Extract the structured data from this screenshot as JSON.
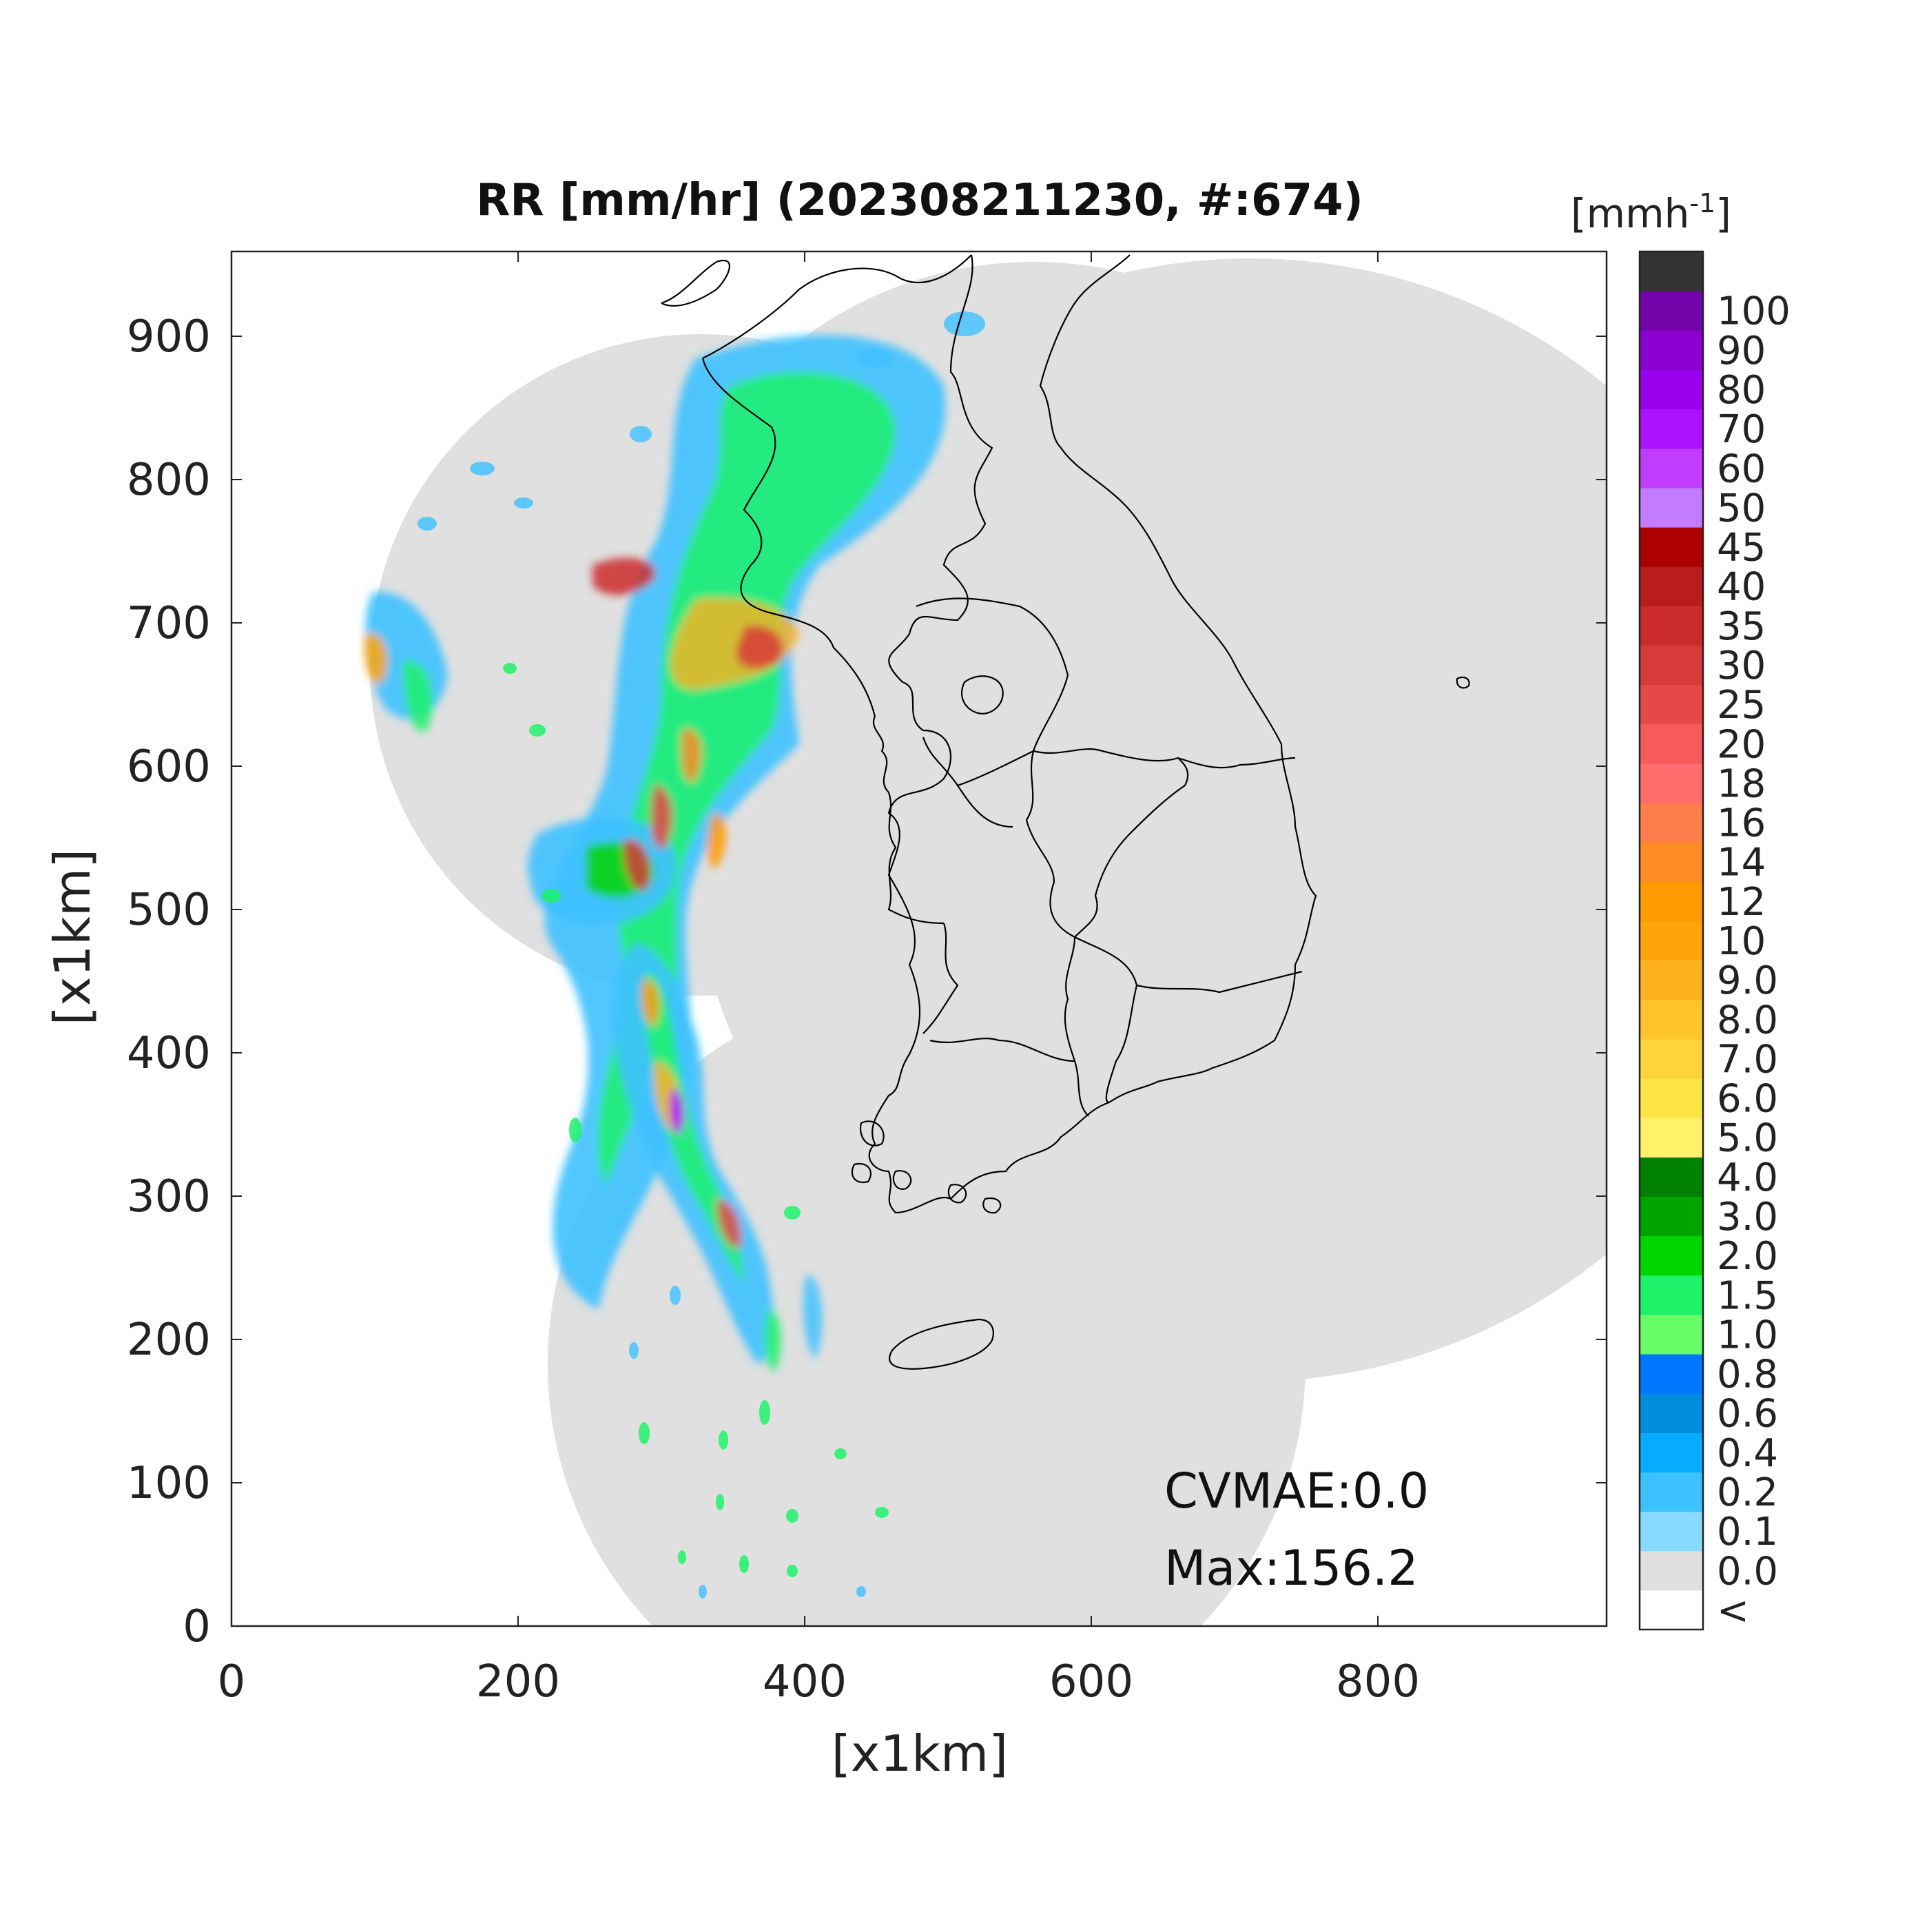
{
  "title": "RR [mm/hr] (202308211230, #:674)",
  "xlabel": "[x1km]",
  "ylabel": "[x1km]",
  "x_ticks": [
    "0",
    "200",
    "400",
    "600",
    "800"
  ],
  "y_ticks": [
    "0",
    "100",
    "200",
    "300",
    "400",
    "500",
    "600",
    "700",
    "800",
    "900"
  ],
  "colorbar": {
    "unit_label": "[mmh",
    "unit_superscript": "-1",
    "unit_close": "]",
    "labels": [
      "<",
      "0.0",
      "0.1",
      "0.2",
      "0.4",
      "0.6",
      "0.8",
      "1.0",
      "1.5",
      "2.0",
      "3.0",
      "4.0",
      "5.0",
      "6.0",
      "7.0",
      "8.0",
      "9.0",
      "10",
      "12",
      "14",
      "16",
      "18",
      "20",
      "25",
      "30",
      "35",
      "40",
      "45",
      "50",
      "60",
      "70",
      "80",
      "90",
      "100"
    ],
    "colors": [
      "#ffffff",
      "#e0e0e0",
      "#87d9ff",
      "#3ec1ff",
      "#07abff",
      "#008dde",
      "#0077ff",
      "#69fc69",
      "#1ef269",
      "#00d500",
      "#00a400",
      "#008000",
      "#fff26a",
      "#ffe446",
      "#ffd33a",
      "#ffc42b",
      "#ffb21e",
      "#ffa50b",
      "#ff9a00",
      "#ff8b27",
      "#ff7e4b",
      "#ff6c6c",
      "#f75a5a",
      "#e64848",
      "#d73a3a",
      "#cc2b2b",
      "#b91c1c",
      "#ad0000",
      "#c37cff",
      "#c13cff",
      "#ab11ff",
      "#9a00eb",
      "#8a00d1",
      "#7304aa",
      "#333333"
    ]
  },
  "annotations": {
    "cvmae": "CVMAE:0.0",
    "max": "Max:156.2"
  },
  "map": {
    "x_range_km": [
      0,
      960
    ],
    "y_range_km": [
      0,
      960
    ],
    "radar_coverage_color": "#e0e0e0",
    "no_data_color": "#ffffff",
    "coastline_color": "#000000"
  }
}
